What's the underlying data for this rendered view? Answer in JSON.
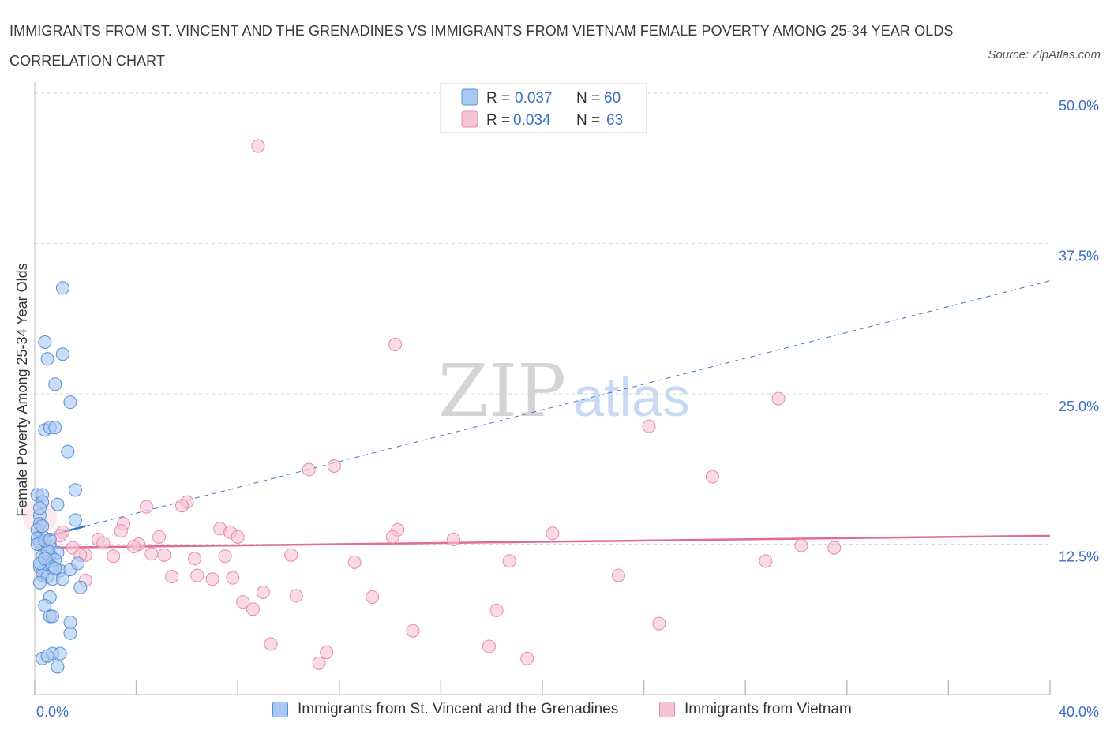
{
  "header": {
    "title": "IMMIGRANTS FROM ST. VINCENT AND THE GRENADINES VS IMMIGRANTS FROM VIETNAM FEMALE POVERTY AMONG 25-34 YEAR OLDS CORRELATION CHART",
    "source": "Source: ZipAtlas.com"
  },
  "watermark": {
    "zip": "ZIP",
    "atlas": "atlas"
  },
  "colors": {
    "blue_fill": "#a9c8f2",
    "blue_stroke": "#5a8fd6",
    "blue_line": "#3a75c8",
    "pink_fill": "#f6c3d3",
    "pink_stroke": "#e48ba8",
    "pink_line": "#e26a93",
    "value_text": "#3a6fc4",
    "grid": "#d8d8d8"
  },
  "legend_top": {
    "rows": [
      {
        "r_label": "R = ",
        "r_value": "0.037",
        "n_label": "N = ",
        "n_value": "60"
      },
      {
        "r_label": "R = ",
        "r_value": "0.034",
        "n_label": "N = ",
        "n_value": "63"
      }
    ]
  },
  "legend_bottom": {
    "items": [
      {
        "label": "Immigrants from St. Vincent and the Grenadines"
      },
      {
        "label": "Immigrants from Vietnam"
      }
    ]
  },
  "chart_data": {
    "type": "scatter",
    "title": "IMMIGRANTS FROM ST. VINCENT AND THE GRENADINES VS IMMIGRANTS FROM VIETNAM FEMALE POVERTY AMONG 25-34 YEAR OLDS CORRELATION CHART",
    "xlabel": "",
    "ylabel": "Female Poverty Among 25-34 Year Olds",
    "xlim": [
      0,
      40
    ],
    "ylim": [
      0,
      50
    ],
    "x_tick_labels": [
      "0.0%",
      "40.0%"
    ],
    "y_tick_values": [
      12.5,
      25.0,
      37.5,
      50.0
    ],
    "y_tick_labels": [
      "12.5%",
      "25.0%",
      "37.5%",
      "50.0%"
    ],
    "grid": true,
    "legend_position": "top-center",
    "series": [
      {
        "name": "Immigrants from St. Vincent and the Grenadines",
        "r": 0.037,
        "n": 60,
        "trend": {
          "x": [
            0,
            2.0,
            40
          ],
          "y": [
            12.9,
            14.0,
            34.4
          ]
        },
        "points": [
          [
            1.1,
            33.8
          ],
          [
            0.4,
            29.3
          ],
          [
            1.1,
            28.3
          ],
          [
            0.5,
            27.9
          ],
          [
            0.8,
            25.8
          ],
          [
            1.4,
            24.3
          ],
          [
            0.4,
            22.0
          ],
          [
            0.6,
            22.2
          ],
          [
            0.8,
            22.2
          ],
          [
            1.3,
            20.2
          ],
          [
            1.6,
            17.0
          ],
          [
            0.1,
            16.6
          ],
          [
            0.3,
            16.6
          ],
          [
            0.3,
            16.0
          ],
          [
            0.9,
            15.8
          ],
          [
            0.2,
            14.9
          ],
          [
            1.6,
            14.5
          ],
          [
            0.2,
            14.2
          ],
          [
            0.1,
            13.7
          ],
          [
            0.3,
            13.2
          ],
          [
            0.1,
            13.0
          ],
          [
            0.2,
            12.6
          ],
          [
            0.6,
            12.3
          ],
          [
            0.1,
            12.5
          ],
          [
            0.9,
            11.8
          ],
          [
            0.6,
            11.6
          ],
          [
            0.8,
            11.2
          ],
          [
            0.5,
            11.0
          ],
          [
            0.2,
            10.6
          ],
          [
            0.7,
            10.6
          ],
          [
            0.3,
            10.2
          ],
          [
            1.0,
            10.3
          ],
          [
            1.4,
            10.4
          ],
          [
            1.7,
            10.9
          ],
          [
            0.3,
            9.9
          ],
          [
            0.5,
            9.8
          ],
          [
            0.7,
            9.6
          ],
          [
            1.1,
            9.6
          ],
          [
            0.2,
            9.3
          ],
          [
            1.8,
            8.9
          ],
          [
            0.6,
            8.1
          ],
          [
            0.4,
            7.4
          ],
          [
            0.6,
            6.5
          ],
          [
            0.7,
            6.5
          ],
          [
            1.4,
            6.0
          ],
          [
            1.4,
            5.1
          ],
          [
            0.7,
            3.4
          ],
          [
            1.0,
            3.4
          ],
          [
            0.3,
            3.0
          ],
          [
            0.5,
            3.2
          ],
          [
            0.9,
            2.3
          ],
          [
            0.3,
            11.5
          ],
          [
            0.5,
            12.0
          ],
          [
            0.2,
            10.9
          ],
          [
            0.4,
            12.8
          ],
          [
            0.8,
            10.5
          ],
          [
            0.6,
            12.9
          ],
          [
            0.3,
            14.0
          ],
          [
            0.2,
            15.5
          ],
          [
            0.4,
            11.3
          ]
        ]
      },
      {
        "name": "Immigrants from Vietnam",
        "r": 0.034,
        "n": 63,
        "trend": {
          "x": [
            0,
            40
          ],
          "y": [
            12.2,
            13.2
          ]
        },
        "points": [
          [
            8.8,
            45.6
          ],
          [
            14.2,
            29.1
          ],
          [
            29.3,
            24.6
          ],
          [
            24.2,
            22.3
          ],
          [
            11.8,
            19.0
          ],
          [
            10.8,
            18.7
          ],
          [
            26.7,
            18.1
          ],
          [
            6.0,
            16.0
          ],
          [
            5.8,
            15.7
          ],
          [
            4.4,
            15.6
          ],
          [
            3.5,
            14.2
          ],
          [
            7.3,
            13.8
          ],
          [
            14.3,
            13.7
          ],
          [
            3.4,
            13.6
          ],
          [
            1.1,
            13.5
          ],
          [
            7.7,
            13.5
          ],
          [
            20.4,
            13.4
          ],
          [
            4.9,
            13.1
          ],
          [
            8.0,
            13.1
          ],
          [
            14.1,
            13.1
          ],
          [
            16.5,
            12.9
          ],
          [
            2.5,
            12.9
          ],
          [
            2.7,
            12.6
          ],
          [
            4.1,
            12.5
          ],
          [
            3.9,
            12.3
          ],
          [
            30.2,
            12.4
          ],
          [
            31.5,
            12.2
          ],
          [
            1.5,
            12.2
          ],
          [
            0.5,
            12.0
          ],
          [
            2.0,
            11.6
          ],
          [
            4.6,
            11.7
          ],
          [
            1.8,
            11.6
          ],
          [
            3.1,
            11.5
          ],
          [
            5.1,
            11.6
          ],
          [
            7.5,
            11.5
          ],
          [
            10.1,
            11.6
          ],
          [
            6.3,
            11.3
          ],
          [
            12.6,
            11.0
          ],
          [
            18.7,
            11.1
          ],
          [
            28.8,
            11.1
          ],
          [
            5.4,
            9.8
          ],
          [
            6.4,
            9.9
          ],
          [
            7.0,
            9.6
          ],
          [
            7.8,
            9.7
          ],
          [
            2.0,
            9.5
          ],
          [
            23.0,
            9.9
          ],
          [
            9.0,
            8.5
          ],
          [
            10.3,
            8.2
          ],
          [
            13.3,
            8.1
          ],
          [
            8.2,
            7.7
          ],
          [
            8.6,
            7.1
          ],
          [
            18.2,
            7.0
          ],
          [
            24.6,
            5.9
          ],
          [
            14.9,
            5.3
          ],
          [
            9.3,
            4.2
          ],
          [
            17.9,
            4.0
          ],
          [
            11.5,
            3.5
          ],
          [
            19.4,
            3.0
          ],
          [
            11.2,
            2.6
          ],
          [
            1.0,
            13.2
          ],
          [
            0.6,
            12.6
          ],
          [
            0.3,
            12.4
          ],
          [
            0.4,
            11.9
          ]
        ]
      }
    ]
  }
}
